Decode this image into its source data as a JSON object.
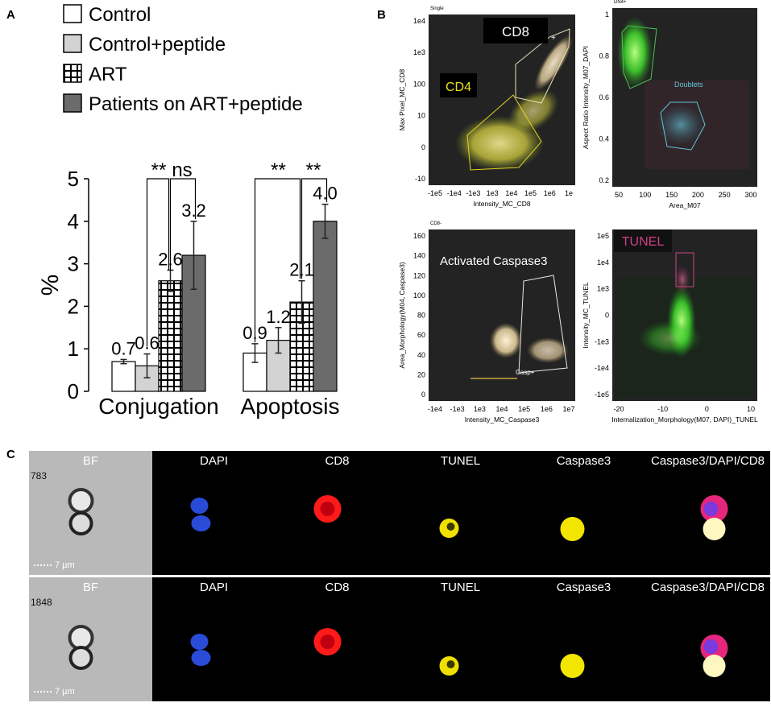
{
  "panels": {
    "a": "A",
    "b": "B",
    "c": "C"
  },
  "chart_data": [
    {
      "type": "bar",
      "categories": [
        "Conjugation",
        "Apoptosis"
      ],
      "series": [
        {
          "name": "Control",
          "values": [
            0.7,
            0.9
          ],
          "errors": [
            0.05,
            0.22
          ],
          "color": "#ffffff",
          "pattern": "none"
        },
        {
          "name": "Control+peptide",
          "values": [
            0.6,
            1.2
          ],
          "errors": [
            0.28,
            0.3
          ],
          "color": "#d3d3d3",
          "pattern": "none"
        },
        {
          "name": "ART",
          "values": [
            2.6,
            2.1
          ],
          "errors": [
            0.25,
            0.5
          ],
          "color": "#000000",
          "pattern": "grid"
        },
        {
          "name": "Patients on ART+peptide",
          "values": [
            3.2,
            4.0
          ],
          "errors": [
            0.8,
            0.4
          ],
          "color": "#6b6b6b",
          "pattern": "none"
        }
      ],
      "value_labels": [
        [
          "0.7",
          "0.6",
          "2.6",
          "3.2"
        ],
        [
          "0.9",
          "1.2",
          "2.1",
          "4.0"
        ]
      ],
      "ylabel": "%",
      "ylim": [
        0,
        5
      ],
      "yticks": [
        "0",
        "1",
        "2",
        "3",
        "4",
        "5"
      ],
      "significance": [
        {
          "category": "Conjugation",
          "from": "Control+peptide",
          "to": "ART",
          "label": "**"
        },
        {
          "category": "Conjugation",
          "from": "ART",
          "to": "Patients on ART+peptide",
          "label": "ns"
        },
        {
          "category": "Apoptosis",
          "from": "Control",
          "to": "ART",
          "label": "**"
        },
        {
          "category": "Apoptosis",
          "from": "ART",
          "to": "Patients on ART+peptide",
          "label": "**"
        }
      ]
    },
    {
      "type": "scatter",
      "title": "Single",
      "xlabel": "Intensity_MC_CD8",
      "ylabel": "Max Pixel_MC_CD8",
      "xticks": [
        "-1e5",
        "-1e4",
        "-1e3",
        "1e3",
        "1e4",
        "1e5",
        "1e6",
        "1e"
      ],
      "yticks": [
        "1e4",
        "1e3",
        "100",
        "10",
        "0",
        "-10"
      ],
      "gates": [
        "CD8",
        "CD4"
      ],
      "gate_suffix": "+"
    },
    {
      "type": "scatter",
      "title": "DN4+",
      "xlabel": "Area_M07",
      "ylabel": "Aspect Ratio Intensity_M07_DAPI",
      "xticks": [
        "50",
        "100",
        "150",
        "200",
        "250",
        "300"
      ],
      "yticks": [
        "1",
        "0.8",
        "0.6",
        "0.4",
        "0.2"
      ],
      "gates": [
        "Doublets"
      ]
    },
    {
      "type": "scatter",
      "title": "CD8-",
      "xlabel": "Intensity_MC_Caspase3",
      "ylabel": "Area_Morphology(M04, Caspase3)",
      "xticks": [
        "-1e4",
        "-1e3",
        "1e3",
        "1e4",
        "1e5",
        "1e6",
        "1e7"
      ],
      "yticks": [
        "160",
        "140",
        "120",
        "100",
        "80",
        "60",
        "40",
        "20",
        "0"
      ],
      "gates": [
        "Activated Caspase3",
        "Casp+"
      ]
    },
    {
      "type": "scatter",
      "xlabel": "Internalization_Morphology(M07, DAPI)_TUNEL",
      "ylabel": "Intensity_MC_TUNEL",
      "xticks": [
        "-20",
        "-10",
        "0",
        "10"
      ],
      "yticks": [
        "1e5",
        "1e4",
        "1e3",
        "0",
        "-1e3",
        "-1e4",
        "-1e5"
      ],
      "gates": [
        "TUNEL"
      ]
    }
  ],
  "imaging": {
    "channels": [
      "BF",
      "DAPI",
      "CD8",
      "TUNEL",
      "Caspase3",
      "Caspase3/DAPI/CD8"
    ],
    "rows": [
      {
        "id": "783",
        "scale": "7 µm"
      },
      {
        "id": "1848",
        "scale": "7 µm"
      }
    ]
  },
  "colors": {
    "bf_bg": "#b9b9b9",
    "dapi": "#2a4bd8",
    "cd8": "#ff1a1a",
    "tunel": "#f0e000",
    "caspase": "#f2e600",
    "flow_bg": "#232323",
    "cd4_gate": "#e0d420",
    "cd8_gate": "#e8e0b8",
    "doublet_gate": "#5ec8d8",
    "tunel_gate": "#d0408a"
  }
}
